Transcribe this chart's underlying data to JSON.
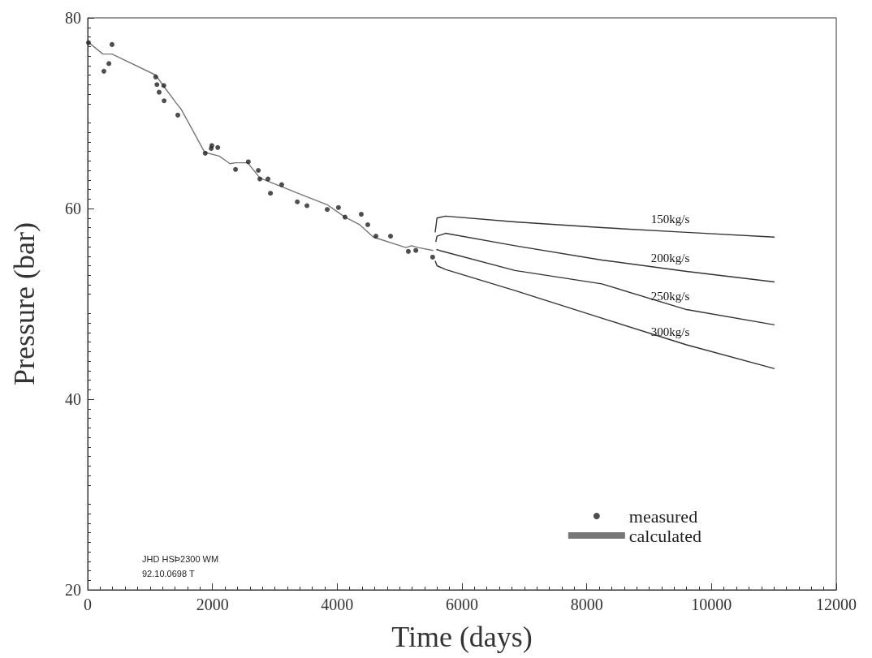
{
  "chart_data": {
    "type": "line",
    "xlabel": "Time (days)",
    "ylabel": "Pressure (bar)",
    "xlim": [
      0,
      12000
    ],
    "xticks": [
      0,
      2000,
      4000,
      6000,
      8000,
      10000,
      12000
    ],
    "ylim": [
      20,
      80
    ],
    "yticks": [
      20,
      40,
      60,
      80
    ],
    "grid": false,
    "legend": "bottom right",
    "line_style": "solid",
    "annotations": [
      "JHD HSÞ2300 WM",
      "92.10.0698 T"
    ],
    "series": [
      {
        "name": "measured",
        "type": "scatter",
        "marker": "circle",
        "color": "#222222",
        "x": [
          13,
          260,
          340,
          390,
          1090,
          1110,
          1145,
          1220,
          1225,
          1445,
          1885,
          1980,
          1990,
          2085,
          2370,
          2575,
          2735,
          2760,
          2890,
          2930,
          3110,
          3360,
          3515,
          3840,
          4020,
          4125,
          4385,
          4490,
          4620,
          4855,
          5140,
          5260,
          5530
        ],
        "values": [
          77.4,
          74.4,
          75.2,
          77.2,
          73.8,
          73.0,
          72.2,
          72.9,
          71.3,
          69.8,
          65.8,
          66.3,
          66.6,
          66.4,
          64.1,
          64.9,
          64.0,
          63.1,
          63.1,
          61.6,
          62.5,
          60.7,
          60.3,
          59.9,
          60.1,
          59.1,
          59.4,
          58.3,
          57.1,
          57.1,
          55.5,
          55.6,
          54.9
        ]
      },
      {
        "name": "calculated",
        "marker": "none",
        "color": "#777777",
        "x": [
          0,
          245,
          390,
          1090,
          1200,
          1415,
          1500,
          1875,
          2110,
          2280,
          2370,
          2565,
          2760,
          3450,
          3840,
          4125,
          4360,
          4580,
          5100,
          5190,
          5300,
          5540
        ],
        "values": [
          77.5,
          76.2,
          76.2,
          74.0,
          73.0,
          71.1,
          70.4,
          65.9,
          65.5,
          64.7,
          64.8,
          64.8,
          63.2,
          61.4,
          60.4,
          59.1,
          58.3,
          57.0,
          55.9,
          56.1,
          55.9,
          55.6
        ]
      },
      {
        "name": "150kg/s",
        "marker": "none",
        "color": "#333333",
        "x": [
          5570,
          5600,
          5735,
          6850,
          8240,
          9600,
          11010
        ],
        "values": [
          57.5,
          59.0,
          59.2,
          58.6,
          58.0,
          57.5,
          57.0
        ]
      },
      {
        "name": "200kg/s",
        "marker": "none",
        "color": "#333333",
        "x": [
          5580,
          5600,
          5735,
          6850,
          8240,
          9600,
          11010
        ],
        "values": [
          56.5,
          57.1,
          57.4,
          56.1,
          54.6,
          53.4,
          52.3
        ]
      },
      {
        "name": "250kg/s",
        "marker": "none",
        "color": "#333333",
        "x": [
          5590,
          5640,
          6850,
          8240,
          9600,
          11010
        ],
        "values": [
          55.7,
          55.6,
          53.5,
          52.1,
          49.4,
          47.8
        ]
      },
      {
        "name": "300kg/s",
        "marker": "none",
        "color": "#333333",
        "x": [
          5570,
          5600,
          5735,
          6850,
          8240,
          9600,
          11010
        ],
        "values": [
          54.5,
          54.0,
          53.6,
          51.4,
          48.5,
          45.7,
          43.2
        ]
      }
    ]
  }
}
